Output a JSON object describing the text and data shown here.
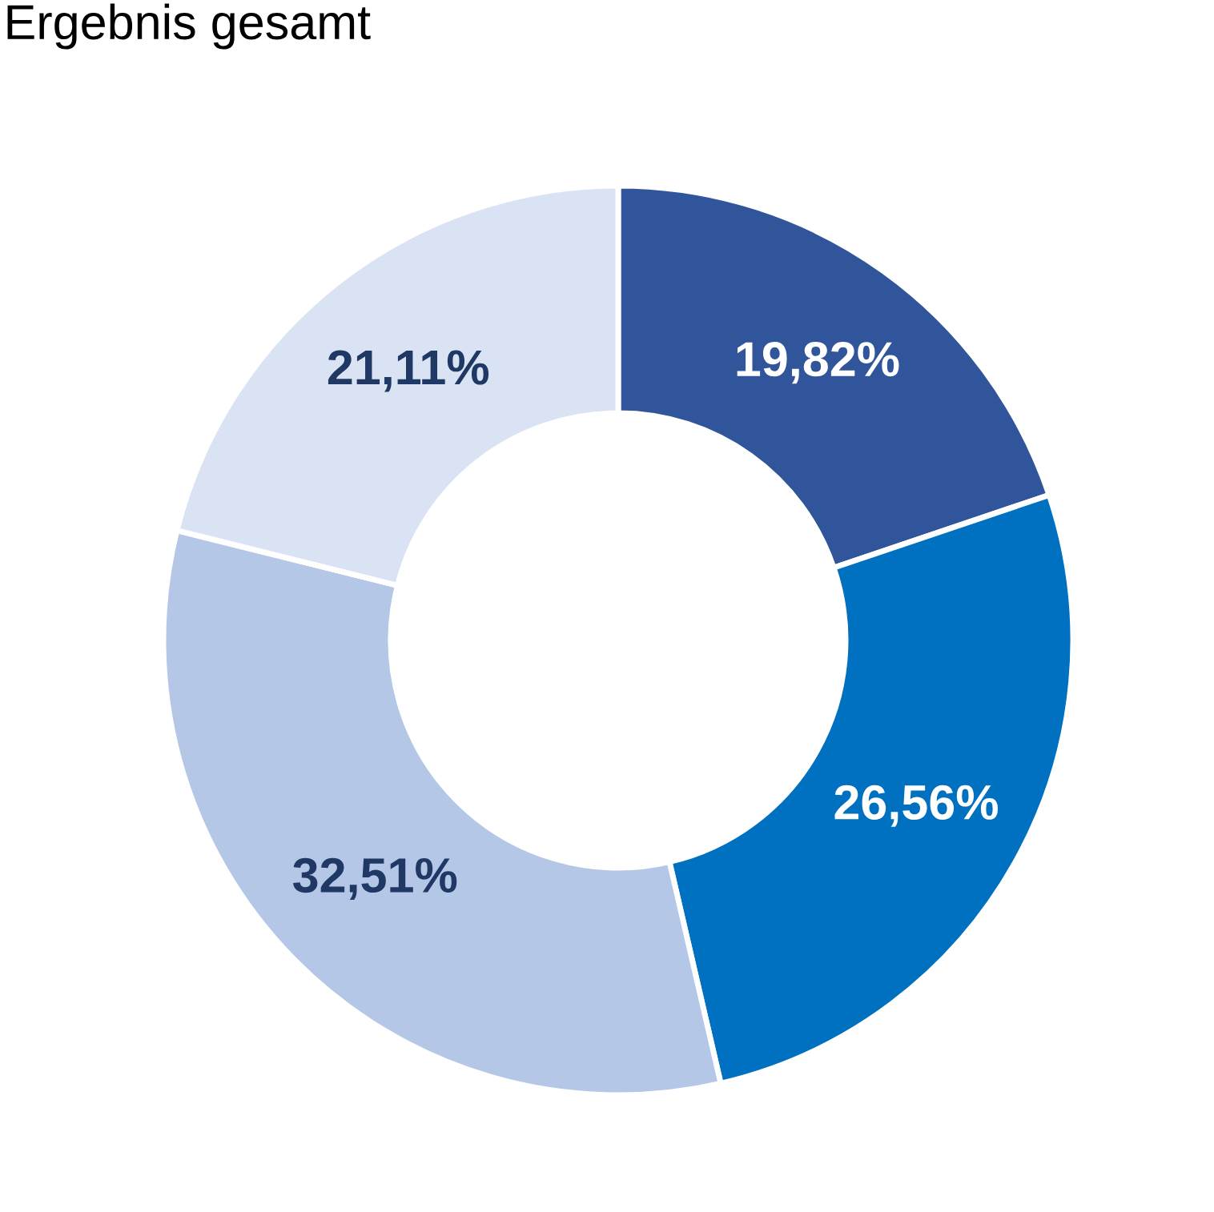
{
  "chart_data": {
    "type": "donut",
    "title": "Ergebnis gesamt",
    "categories": [
      null,
      null,
      null,
      null
    ],
    "values": [
      19.82,
      26.56,
      32.51,
      21.11
    ],
    "colors": [
      "#30559a",
      "#0070c0",
      "#b4c7e7",
      "#dae3f3"
    ],
    "value_labels": [
      "19,82%",
      "26,56%",
      "32,51%",
      "21,11%"
    ],
    "legend": false
  }
}
